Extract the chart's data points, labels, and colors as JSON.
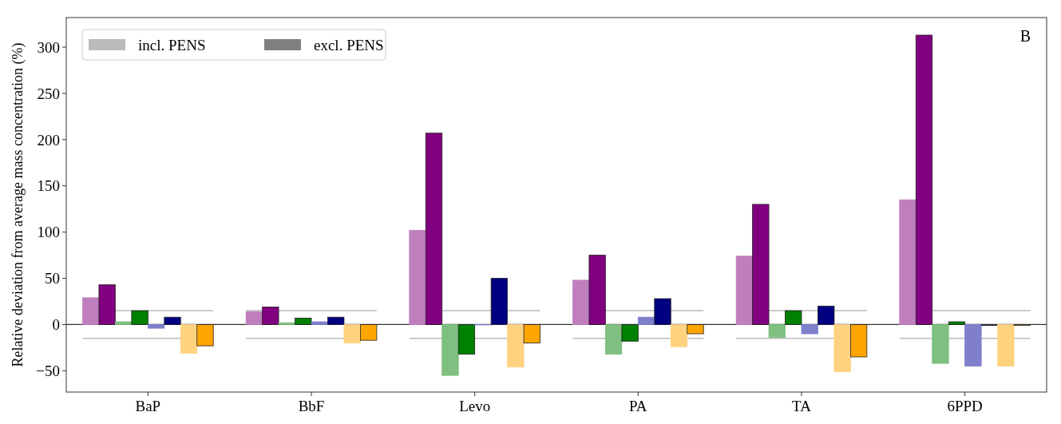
{
  "chart_data": {
    "type": "bar",
    "ylabel": "Relative deviation from average mass concentration (%)",
    "categories": [
      "BaP",
      "BbF",
      "Levo",
      "PA",
      "TA",
      "6PPD"
    ],
    "series": [
      {
        "color": "#bf7fbf",
        "values": [
          29,
          14,
          102,
          48,
          74,
          135
        ]
      },
      {
        "color": "#800080",
        "values": [
          43,
          19,
          207,
          75,
          130,
          313
        ]
      },
      {
        "color": "#7fbf7f",
        "values": [
          3,
          2,
          -55,
          -32,
          -14,
          -42
        ]
      },
      {
        "color": "#008000",
        "values": [
          15,
          7,
          -32,
          -18,
          15,
          3
        ]
      },
      {
        "color": "#7f7fcc",
        "values": [
          -4,
          3,
          0,
          8,
          -10,
          -45
        ]
      },
      {
        "color": "#000080",
        "values": [
          8,
          8,
          50,
          28,
          20,
          -1
        ]
      },
      {
        "color": "#ffd27f",
        "values": [
          -31,
          -20,
          -46,
          -24,
          -51,
          -45
        ]
      },
      {
        "color": "#ffa500",
        "values": [
          -23,
          -17,
          -20,
          -10,
          -35,
          -1
        ]
      },
      {
        "name": "incl. PENS",
        "color": "#bbbbbb",
        "values": [
          null,
          null,
          null,
          null,
          null,
          null
        ]
      },
      {
        "name": "excl. PENS",
        "color": "#808080",
        "values": [
          null,
          null,
          null,
          null,
          null,
          null
        ]
      }
    ],
    "ylim": [
      -73,
      332
    ],
    "yticks": [
      -50,
      0,
      50,
      100,
      150,
      200,
      250,
      300
    ],
    "ref_lines": [
      {
        "axis": "y",
        "value": 15,
        "color": "#bbbbbb"
      },
      {
        "axis": "y",
        "value": -15,
        "color": "#bbbbbb"
      }
    ],
    "annotations": [
      "B"
    ],
    "legend": "top left"
  }
}
